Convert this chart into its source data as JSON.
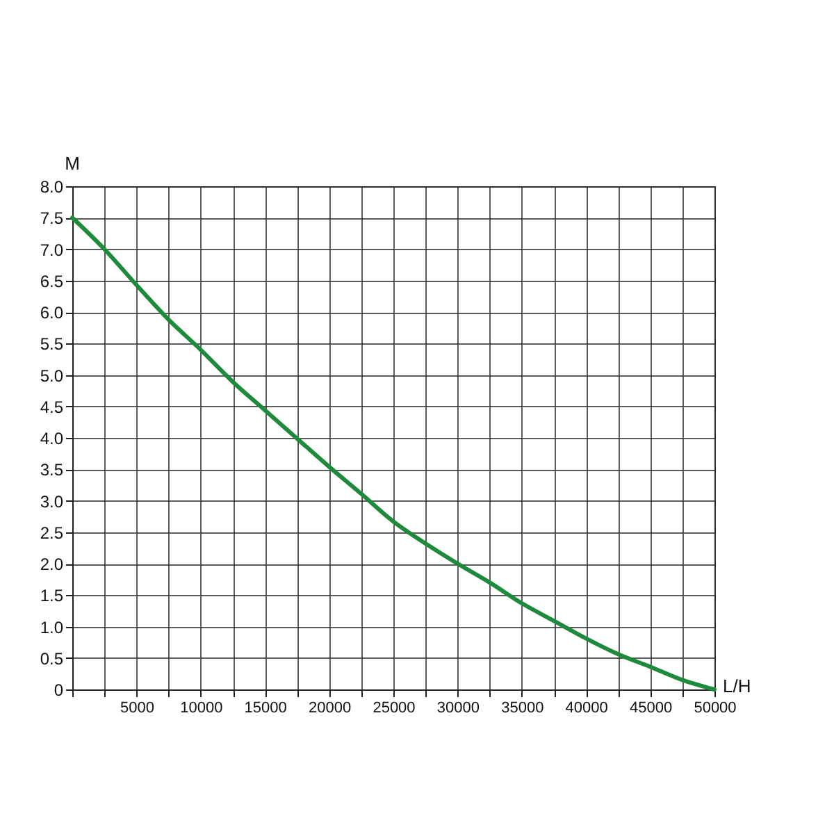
{
  "chart_data": {
    "type": "line",
    "xlabel": "L/H",
    "ylabel": "M",
    "x": [
      0,
      2500,
      5000,
      7500,
      10000,
      12500,
      15000,
      17500,
      20000,
      22500,
      25000,
      27500,
      30000,
      32500,
      35000,
      37500,
      40000,
      42500,
      45000,
      47500,
      50000
    ],
    "series": [
      {
        "color": "#1e8a3c",
        "values": [
          7.5,
          7.0,
          6.43,
          5.88,
          5.4,
          4.89,
          4.44,
          3.99,
          3.54,
          3.11,
          2.67,
          2.32,
          2.0,
          1.7,
          1.37,
          1.09,
          0.81,
          0.56,
          0.36,
          0.15,
          0
        ]
      }
    ],
    "xlim": [
      0,
      50000
    ],
    "ylim": [
      0,
      8
    ],
    "xticks": [
      {
        "value": 0,
        "label": null
      },
      {
        "value": 2500,
        "label": null
      },
      5000,
      {
        "value": 7500,
        "label": null
      },
      10000,
      {
        "value": 12500,
        "label": null
      },
      15000,
      {
        "value": 17500,
        "label": null
      },
      20000,
      {
        "value": 22500,
        "label": null
      },
      25000,
      {
        "value": 27500,
        "label": null
      },
      30000,
      {
        "value": 32500,
        "label": null
      },
      35000,
      {
        "value": 37500,
        "label": null
      },
      40000,
      {
        "value": 42500,
        "label": null
      },
      45000,
      {
        "value": 47500,
        "label": null
      },
      50000
    ],
    "yticks": [
      0,
      {
        "value": 0.5,
        "label": "0.5"
      },
      {
        "value": 1,
        "label": "1.0"
      },
      {
        "value": 1.5,
        "label": "1.5"
      },
      {
        "value": 2,
        "label": "2.0"
      },
      {
        "value": 2.5,
        "label": "2.5"
      },
      {
        "value": 3,
        "label": "3.0"
      },
      {
        "value": 3.5,
        "label": "3.5"
      },
      {
        "value": 4,
        "label": "4.0"
      },
      {
        "value": 4.5,
        "label": "4.5"
      },
      {
        "value": 5,
        "label": "5.0"
      },
      {
        "value": 5.5,
        "label": "5.5"
      },
      {
        "value": 6,
        "label": "6.0"
      },
      {
        "value": 6.5,
        "label": "6.5"
      },
      {
        "value": 7,
        "label": "7.0"
      },
      {
        "value": 7.5,
        "label": "7.5"
      },
      {
        "value": 8,
        "label": "8.0"
      }
    ],
    "grid": true,
    "marker": "none",
    "line_style": "solid"
  }
}
